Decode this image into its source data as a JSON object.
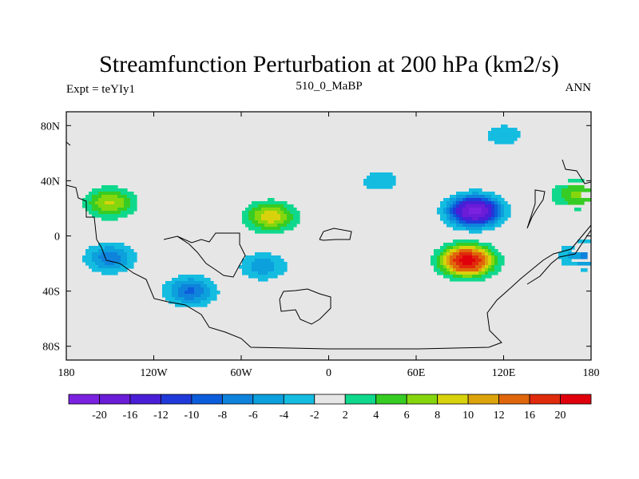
{
  "chart_data": {
    "type": "heatmap",
    "title": "Streamfunction Perturbation at 200 hPa (km2/s)",
    "left_string": "Expt = teYIy1",
    "center_string": "510_0_MaBP",
    "right_string": "ANN",
    "projection": "cylindrical-equidistant",
    "xlim": [
      -180,
      180
    ],
    "ylim": [
      -90,
      90
    ],
    "x_ticks": [
      {
        "value": -180,
        "label": "180"
      },
      {
        "value": -120,
        "label": "120W"
      },
      {
        "value": -60,
        "label": "60W"
      },
      {
        "value": 0,
        "label": "0"
      },
      {
        "value": 60,
        "label": "60E"
      },
      {
        "value": 120,
        "label": "120E"
      },
      {
        "value": 180,
        "label": "180"
      }
    ],
    "y_ticks": [
      {
        "value": 80,
        "label": "80N"
      },
      {
        "value": 40,
        "label": "40N"
      },
      {
        "value": 0,
        "label": "0"
      },
      {
        "value": -40,
        "label": "40S"
      },
      {
        "value": -80,
        "label": "80S"
      }
    ],
    "colorbar": {
      "levels": [
        -20,
        -16,
        -12,
        -10,
        -8,
        -6,
        -4,
        -2,
        2,
        4,
        6,
        8,
        10,
        12,
        16,
        20
      ],
      "labels": [
        "-20",
        "-16",
        "-12",
        "-10",
        "-8",
        "-6",
        "-4",
        "-2",
        "2",
        "4",
        "6",
        "8",
        "10",
        "12",
        "16",
        "20"
      ],
      "colors": [
        "#7a22e0",
        "#6a1cd6",
        "#4a1ed6",
        "#1f3ad8",
        "#0c5ddb",
        "#0f82dc",
        "#0ca0dc",
        "#14bce0",
        "#e6e6e6",
        "#0fd88c",
        "#37cc23",
        "#86d60e",
        "#d8d20c",
        "#dca40c",
        "#e0660c",
        "#e02a0c",
        "#e0000c"
      ]
    },
    "features": [
      {
        "lon": 100,
        "lat": 18,
        "value": -21
      },
      {
        "lon": 95,
        "lat": -18,
        "value": 21
      },
      {
        "lon": -150,
        "lat": 24,
        "value": 8
      },
      {
        "lon": -40,
        "lat": 14,
        "value": 9
      },
      {
        "lon": -150,
        "lat": -16,
        "value": -7
      },
      {
        "lon": -95,
        "lat": -40,
        "value": -8
      },
      {
        "lon": -45,
        "lat": -22,
        "value": -5
      },
      {
        "lon": 35,
        "lat": 40,
        "value": -3
      },
      {
        "lon": 120,
        "lat": 73,
        "value": -3
      },
      {
        "lon": 170,
        "lat": 30,
        "value": 6
      },
      {
        "lon": 175,
        "lat": -14,
        "value": -6
      }
    ]
  }
}
